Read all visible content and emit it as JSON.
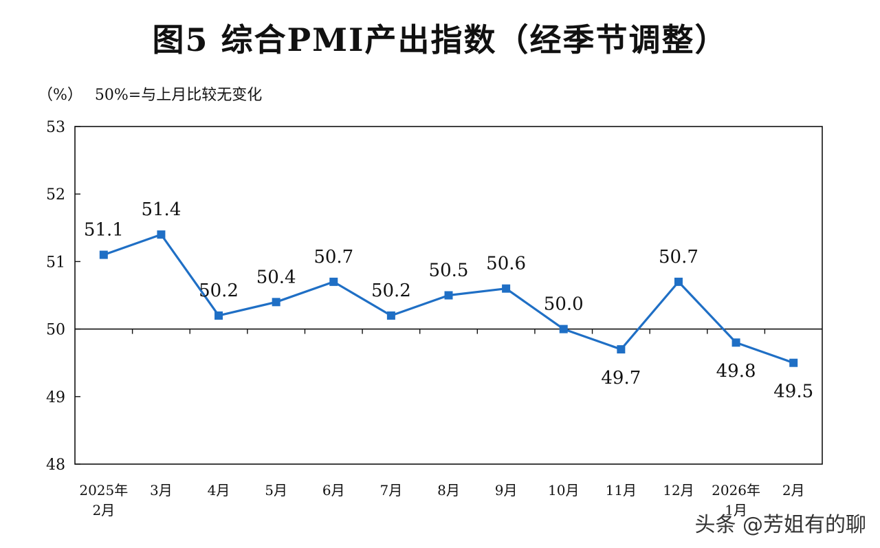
{
  "chart_data": {
    "type": "line",
    "title": "图5  综合PMI产出指数（经季节调整）",
    "y_unit": "（%）",
    "note": "50%=与上月比较无变化",
    "categories": [
      [
        "2025年",
        "2月"
      ],
      [
        "3月"
      ],
      [
        "4月"
      ],
      [
        "5月"
      ],
      [
        "6月"
      ],
      [
        "7月"
      ],
      [
        "8月"
      ],
      [
        "9月"
      ],
      [
        "10月"
      ],
      [
        "11月"
      ],
      [
        "12月"
      ],
      [
        "2026年",
        "1月"
      ],
      [
        "2月"
      ]
    ],
    "values": [
      51.1,
      51.4,
      50.2,
      50.4,
      50.7,
      50.2,
      50.5,
      50.6,
      50.0,
      49.7,
      50.7,
      49.8,
      49.5
    ],
    "data_labels": [
      "51.1",
      "51.4",
      "50.2",
      "50.4",
      "50.7",
      "50.2",
      "50.5",
      "50.6",
      "50.0",
      "49.7",
      "50.7",
      "49.8",
      "49.5"
    ],
    "label_positions": [
      "above",
      "above",
      "above",
      "above",
      "above",
      "above",
      "above",
      "above",
      "above",
      "below",
      "above",
      "below",
      "below"
    ],
    "ylim": [
      48,
      53
    ],
    "yticks": [
      48,
      49,
      50,
      51,
      52,
      53
    ],
    "reference_line": 50,
    "line_color": "#1f6fc5",
    "marker": "square"
  },
  "watermark": "头条 @芳姐有的聊"
}
